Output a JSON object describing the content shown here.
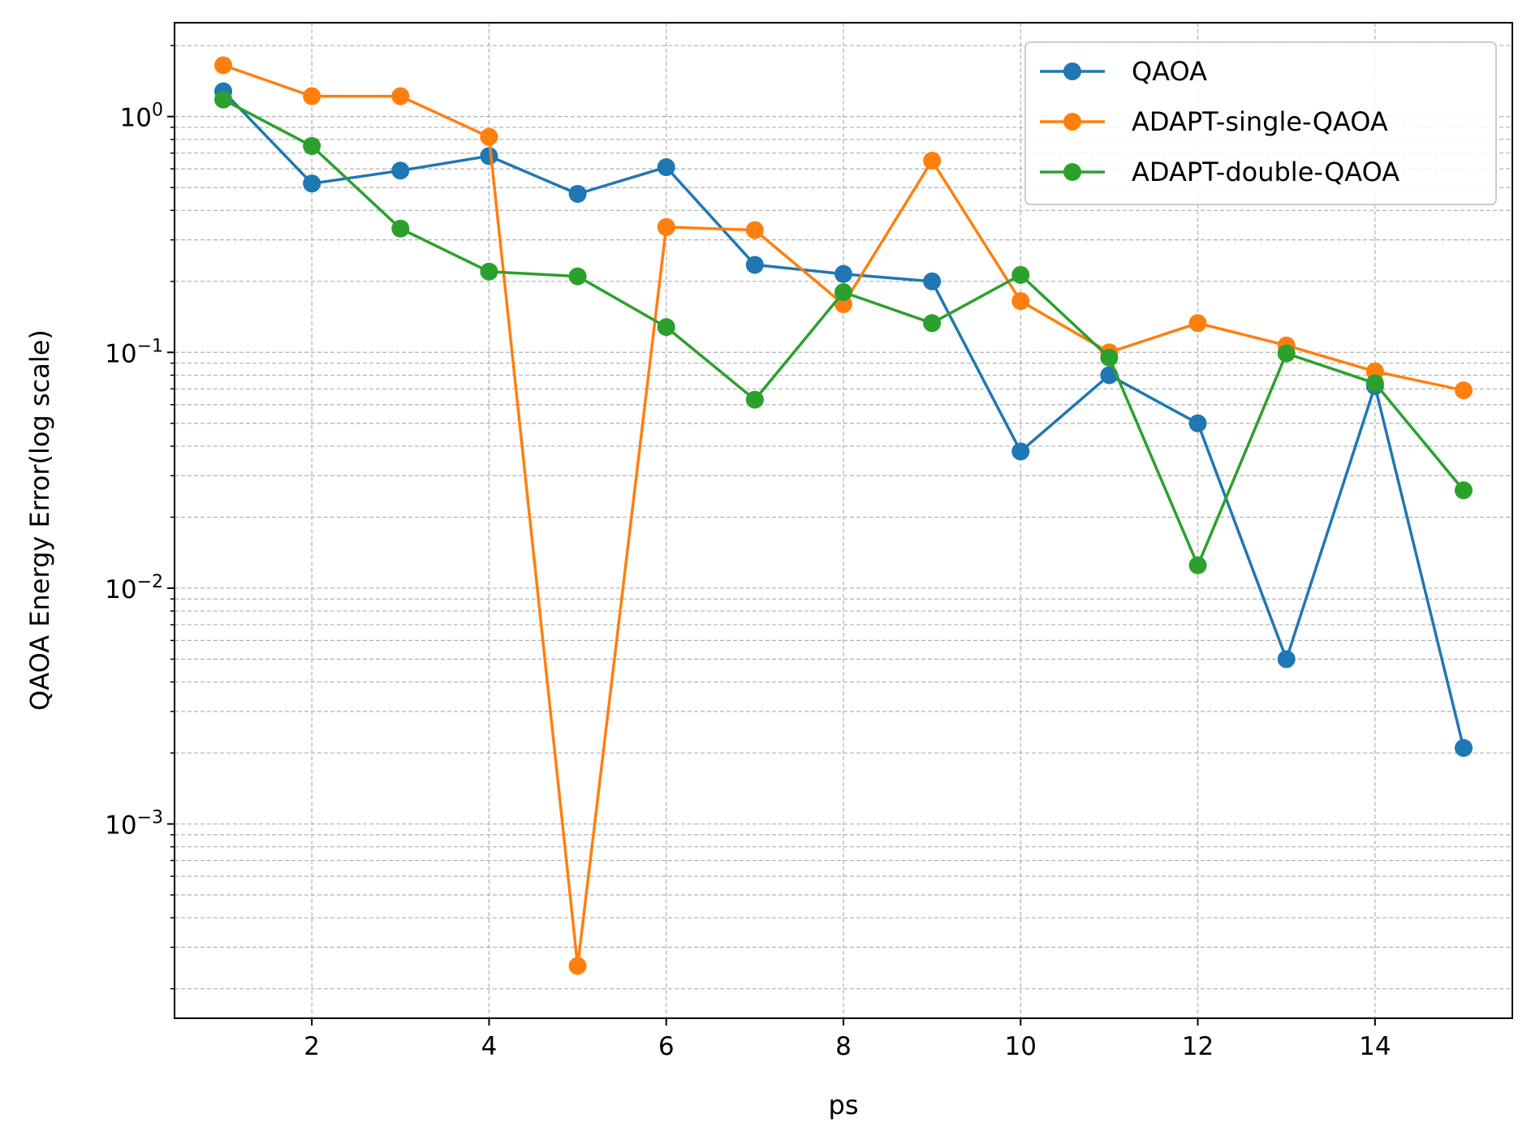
{
  "chart_data": {
    "type": "line",
    "title": "",
    "xlabel": "ps",
    "ylabel": "QAOA Energy Error(log scale)",
    "yscale": "log",
    "xlim": [
      0.45,
      15.55
    ],
    "ylim": [
      0.00015,
      2.5
    ],
    "x_ticks": [
      2,
      4,
      6,
      8,
      10,
      12,
      14
    ],
    "x_tick_labels": [
      "2",
      "4",
      "6",
      "8",
      "10",
      "12",
      "14"
    ],
    "y_ticks": [
      {
        "value": 1,
        "base": "10",
        "exp": "0"
      },
      {
        "value": 0.1,
        "base": "10",
        "exp": "−1"
      },
      {
        "value": 0.01,
        "base": "10",
        "exp": "−2"
      },
      {
        "value": 0.001,
        "base": "10",
        "exp": "−3"
      }
    ],
    "grid": true,
    "legend_position": "upper-right",
    "x": [
      1,
      2,
      3,
      4,
      5,
      6,
      7,
      8,
      9,
      10,
      11,
      12,
      13,
      14,
      15
    ],
    "series": [
      {
        "name": "QAOA",
        "color": "#1f77b4",
        "values": [
          1.28,
          0.52,
          0.59,
          0.68,
          0.47,
          0.61,
          0.235,
          0.215,
          0.2,
          0.038,
          0.08,
          0.05,
          0.005,
          0.072,
          0.0021
        ]
      },
      {
        "name": "ADAPT-single-QAOA",
        "color": "#ff7f0e",
        "values": [
          1.65,
          1.22,
          1.22,
          0.82,
          0.00025,
          0.34,
          0.33,
          0.16,
          0.65,
          0.165,
          0.1,
          0.133,
          0.107,
          0.083,
          0.069
        ]
      },
      {
        "name": "ADAPT-double-QAOA",
        "color": "#2ca02c",
        "values": [
          1.18,
          0.75,
          0.335,
          0.22,
          0.21,
          0.128,
          0.063,
          0.18,
          0.133,
          0.213,
          0.095,
          0.0125,
          0.099,
          0.074,
          0.026
        ]
      }
    ]
  }
}
